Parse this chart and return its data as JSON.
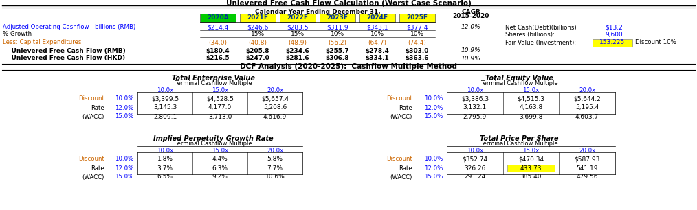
{
  "title1": "Unlevered Free Cash Flow Calculation (Worst Case Scenario)",
  "title2": "DCF Analysis (2020-2025):  Cashflow Multiple Method",
  "cal_year_label": "Calendar Year Ending December 31,",
  "cagr_label": "CAGR",
  "cagr_sub": "2015-2020",
  "years": [
    "2020A",
    "2021F",
    "2022F",
    "2023F",
    "2024F",
    "2025F"
  ],
  "year_colors": [
    "#00cc00",
    "#ffff00",
    "#ffff00",
    "#ffff00",
    "#ffff00",
    "#ffff00"
  ],
  "row1_label": "Adjusted Operating Cashflow - billions (RMB)",
  "row1_vals": [
    "$214.4",
    "$246.6",
    "$283.5",
    "$311.9",
    "$343.1",
    "$377.4"
  ],
  "row1_cagr": "12.0%",
  "row2_label": "% Growth",
  "row2_vals": [
    "-",
    "15%",
    "15%",
    "10%",
    "10%",
    "10%"
  ],
  "row3_label": "Less: Capital Expenditures",
  "row3_vals": [
    "(34.0)",
    "(40.8)",
    "(48.9)",
    "(56.2)",
    "(64.7)",
    "(74.4)"
  ],
  "row4_label": "    Unlevered Free Cash Flow (RMB)",
  "row4_vals": [
    "$180.4",
    "$205.8",
    "$234.6",
    "$255.7",
    "$278.4",
    "$303.0"
  ],
  "row4_cagr": "10.9%",
  "row5_label": "    Unlevered Free Cash Flow (HKD)",
  "row5_vals": [
    "$216.5",
    "$247.0",
    "$281.6",
    "$306.8",
    "$334.1",
    "$363.6"
  ],
  "row5_cagr": "10.9%",
  "net_cash_label": "Net Cash(Debt)(billions)",
  "net_cash_val": "$13.2",
  "shares_label": "Shares (billions):",
  "shares_val": "9,600",
  "fair_value_label": "Fair Value (Investment):",
  "fair_value_val": "153.225",
  "discount_label": "Discount 10%",
  "tev_title": "Total Enterprise Value",
  "tev_sub": "Terminal Cashflow Multiple",
  "tev_cols": [
    "10.0x",
    "15.0x",
    "20.0x"
  ],
  "tev_rows": [
    {
      "label": "Discount",
      "rate": "10.0%",
      "vals": [
        "$3,399.5",
        "$4,528.5",
        "$5,657.4"
      ]
    },
    {
      "label": "Rate",
      "rate": "12.0%",
      "vals": [
        "3,145.3",
        "4,177.0",
        "5,208.6"
      ]
    },
    {
      "label": "(WACC)",
      "rate": "15.0%",
      "vals": [
        "2,809.1",
        "3,713.0",
        "4,616.9"
      ]
    }
  ],
  "teqv_title": "Total Equity Value",
  "teqv_sub": "Terminal Cashflow Multiple",
  "teqv_cols": [
    "10.0x",
    "15.0x",
    "20.0x"
  ],
  "teqv_rows": [
    {
      "label": "Discount",
      "rate": "10.0%",
      "vals": [
        "$3,386.3",
        "$4,515.3",
        "$5,644.2"
      ]
    },
    {
      "label": "Rate",
      "rate": "12.0%",
      "vals": [
        "3,132.1",
        "4,163.8",
        "5,195.4"
      ]
    },
    {
      "label": "(WACC)",
      "rate": "15.0%",
      "vals": [
        "2,795.9",
        "3,699.8",
        "4,603.7"
      ]
    }
  ],
  "ipgr_title": "Implied Perpetuity Growth Rate",
  "ipgr_sub": "Terminal Cashflow Multiple",
  "ipgr_cols": [
    "10.0x",
    "15.0x",
    "20.0x"
  ],
  "ipgr_rows": [
    {
      "label": "Discount",
      "rate": "10.0%",
      "vals": [
        "1.8%",
        "4.4%",
        "5.8%"
      ]
    },
    {
      "label": "Rate",
      "rate": "12.0%",
      "vals": [
        "3.7%",
        "6.3%",
        "7.7%"
      ]
    },
    {
      "label": "(WACC)",
      "rate": "15.0%",
      "vals": [
        "6.5%",
        "9.2%",
        "10.6%"
      ]
    }
  ],
  "tpps_title": "Total Price Per Share",
  "tpps_sub": "Terminal Cashflow Multiple",
  "tpps_cols": [
    "10.0x",
    "15.0x",
    "20.0x"
  ],
  "tpps_rows": [
    {
      "label": "Discount",
      "rate": "10.0%",
      "vals": [
        "$352.74",
        "$470.34",
        "$587.93"
      ]
    },
    {
      "label": "Rate",
      "rate": "12.0%",
      "vals": [
        "326.26",
        "433.73",
        "541.19"
      ]
    },
    {
      "label": "(WACC)",
      "rate": "15.0%",
      "vals": [
        "291.24",
        "385.40",
        "479.56"
      ]
    }
  ],
  "blue": "#0000ff",
  "dark_blue": "#003399",
  "orange": "#cc6600",
  "black": "#000000",
  "yellow_highlight": "#ffff00",
  "bg": "#ffffff"
}
